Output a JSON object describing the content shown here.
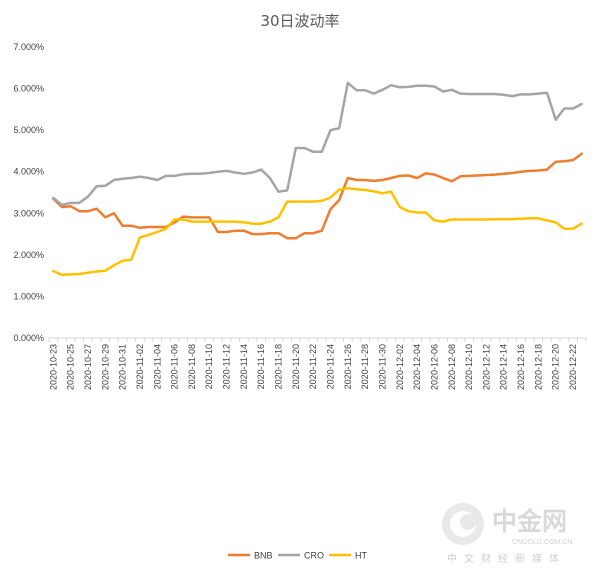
{
  "chart_data": {
    "type": "line",
    "title": "30日波动率",
    "xlabel": "",
    "ylabel": "",
    "ylim": [
      0,
      0.07
    ],
    "yticks": [
      "0.000%",
      "1.000%",
      "2.000%",
      "3.000%",
      "4.000%",
      "5.000%",
      "6.000%",
      "7.000%"
    ],
    "grid": "none",
    "legend_position": "bottom",
    "x": [
      "2020-10-23",
      "2020-10-24",
      "2020-10-25",
      "2020-10-26",
      "2020-10-27",
      "2020-10-28",
      "2020-10-29",
      "2020-10-30",
      "2020-10-31",
      "2020-11-01",
      "2020-11-02",
      "2020-11-03",
      "2020-11-04",
      "2020-11-05",
      "2020-11-06",
      "2020-11-07",
      "2020-11-08",
      "2020-11-09",
      "2020-11-10",
      "2020-11-11",
      "2020-11-12",
      "2020-11-13",
      "2020-11-14",
      "2020-11-15",
      "2020-11-16",
      "2020-11-17",
      "2020-11-18",
      "2020-11-19",
      "2020-11-20",
      "2020-11-21",
      "2020-11-22",
      "2020-11-23",
      "2020-11-24",
      "2020-11-25",
      "2020-11-26",
      "2020-11-27",
      "2020-11-28",
      "2020-11-29",
      "2020-11-30",
      "2020-12-01",
      "2020-12-02",
      "2020-12-03",
      "2020-12-04",
      "2020-12-05",
      "2020-12-06",
      "2020-12-07",
      "2020-12-08",
      "2020-12-09",
      "2020-12-10",
      "2020-12-11",
      "2020-12-12",
      "2020-12-13",
      "2020-12-14",
      "2020-12-15",
      "2020-12-16",
      "2020-12-17",
      "2020-12-18",
      "2020-12-19",
      "2020-12-20",
      "2020-12-21",
      "2020-12-22",
      "2020-12-23"
    ],
    "xticks": [
      "2020-10-23",
      "2020-10-25",
      "2020-10-27",
      "2020-10-29",
      "2020-10-31",
      "2020-11-02",
      "2020-11-04",
      "2020-11-06",
      "2020-11-08",
      "2020-11-10",
      "2020-11-12",
      "2020-11-14",
      "2020-11-16",
      "2020-11-18",
      "2020-11-20",
      "2020-11-22",
      "2020-11-24",
      "2020-11-26",
      "2020-11-28",
      "2020-11-30",
      "2020-12-02",
      "2020-12-04",
      "2020-12-06",
      "2020-12-08",
      "2020-12-10",
      "2020-12-12",
      "2020-12-14",
      "2020-12-16",
      "2020-12-18",
      "2020-12-20",
      "2020-12-22"
    ],
    "series": [
      {
        "name": "BNB",
        "color": "#ed7d31",
        "values": [
          0.0335,
          0.0315,
          0.0317,
          0.0305,
          0.0305,
          0.0311,
          0.029,
          0.03,
          0.027,
          0.027,
          0.0265,
          0.0267,
          0.0267,
          0.0267,
          0.0278,
          0.0292,
          0.029,
          0.029,
          0.029,
          0.0255,
          0.0255,
          0.0258,
          0.0258,
          0.025,
          0.025,
          0.0252,
          0.0252,
          0.024,
          0.024,
          0.0252,
          0.0252,
          0.0258,
          0.031,
          0.0332,
          0.0385,
          0.038,
          0.038,
          0.0378,
          0.038,
          0.0385,
          0.039,
          0.0391,
          0.0385,
          0.0396,
          0.0393,
          0.0385,
          0.0377,
          0.0389,
          0.039,
          0.0391,
          0.0392,
          0.0393,
          0.0395,
          0.0397,
          0.04,
          0.0402,
          0.0403,
          0.0405,
          0.0424,
          0.0425,
          0.0428,
          0.0443
        ]
      },
      {
        "name": "CRO",
        "color": "#a5a5a5",
        "values": [
          0.0337,
          0.032,
          0.0325,
          0.0325,
          0.034,
          0.0365,
          0.0366,
          0.038,
          0.0383,
          0.0385,
          0.0388,
          0.0385,
          0.038,
          0.039,
          0.039,
          0.0394,
          0.0395,
          0.0395,
          0.0397,
          0.04,
          0.0402,
          0.0398,
          0.0395,
          0.0398,
          0.0405,
          0.0385,
          0.0352,
          0.0355,
          0.0457,
          0.0457,
          0.0448,
          0.0448,
          0.05,
          0.0505,
          0.0614,
          0.0596,
          0.0596,
          0.0588,
          0.0597,
          0.0608,
          0.0603,
          0.0604,
          0.0607,
          0.0607,
          0.0605,
          0.0593,
          0.0597,
          0.0588,
          0.0587,
          0.0587,
          0.0587,
          0.0587,
          0.0585,
          0.0582,
          0.0586,
          0.0586,
          0.0588,
          0.059,
          0.0525,
          0.0552,
          0.0552,
          0.0563
        ]
      },
      {
        "name": "HT",
        "color": "#ffc000",
        "values": [
          0.0161,
          0.0152,
          0.0153,
          0.0154,
          0.0157,
          0.016,
          0.0162,
          0.0175,
          0.0186,
          0.0188,
          0.0242,
          0.0248,
          0.0255,
          0.0263,
          0.0285,
          0.0285,
          0.028,
          0.028,
          0.028,
          0.028,
          0.028,
          0.028,
          0.0278,
          0.0275,
          0.0275,
          0.028,
          0.029,
          0.0328,
          0.0328,
          0.0328,
          0.0328,
          0.033,
          0.0338,
          0.0357,
          0.036,
          0.0358,
          0.0356,
          0.0353,
          0.0348,
          0.0352,
          0.0315,
          0.0305,
          0.0302,
          0.0302,
          0.0283,
          0.028,
          0.0285,
          0.0285,
          0.0285,
          0.0285,
          0.0285,
          0.0286,
          0.0286,
          0.0286,
          0.0287,
          0.0288,
          0.0288,
          0.0283,
          0.0278,
          0.0263,
          0.0263,
          0.0275
        ]
      }
    ]
  },
  "watermark": {
    "brand": "中金网",
    "domain": "CNGOLD.COM.CN",
    "tagline": "中文财经新媒体"
  }
}
